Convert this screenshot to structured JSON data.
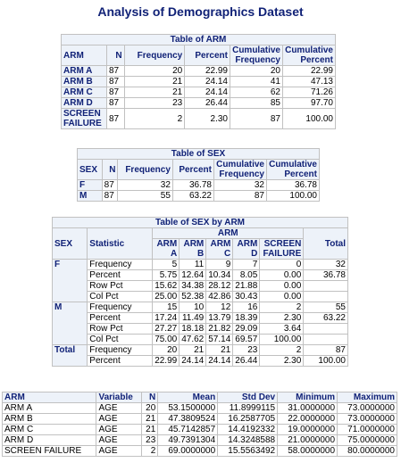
{
  "title": "Analysis of Demographics Dataset",
  "arm_table": {
    "caption": "Table of ARM",
    "headers": {
      "var": "ARM",
      "n": "N",
      "frequency": "Frequency",
      "percent": "Percent",
      "cum_freq": "Cumulative Frequency",
      "cum_pct": "Cumulative Percent"
    },
    "rows": [
      {
        "label": "ARM A",
        "n": "87",
        "freq": "20",
        "pct": "22.99",
        "cfreq": "20",
        "cpct": "22.99"
      },
      {
        "label": "ARM B",
        "n": "87",
        "freq": "21",
        "pct": "24.14",
        "cfreq": "41",
        "cpct": "47.13"
      },
      {
        "label": "ARM C",
        "n": "87",
        "freq": "21",
        "pct": "24.14",
        "cfreq": "62",
        "cpct": "71.26"
      },
      {
        "label": "ARM D",
        "n": "87",
        "freq": "23",
        "pct": "26.44",
        "cfreq": "85",
        "cpct": "97.70"
      },
      {
        "label": "SCREEN FAILURE",
        "n": "87",
        "freq": "2",
        "pct": "2.30",
        "cfreq": "87",
        "cpct": "100.00"
      }
    ]
  },
  "sex_table": {
    "caption": "Table of SEX",
    "headers": {
      "var": "SEX",
      "n": "N",
      "frequency": "Frequency",
      "percent": "Percent",
      "cum_freq": "Cumulative Frequency",
      "cum_pct": "Cumulative Percent"
    },
    "rows": [
      {
        "label": "F",
        "n": "87",
        "freq": "32",
        "pct": "36.78",
        "cfreq": "32",
        "cpct": "36.78"
      },
      {
        "label": "M",
        "n": "87",
        "freq": "55",
        "pct": "63.22",
        "cfreq": "87",
        "cpct": "100.00"
      }
    ]
  },
  "crosstab": {
    "caption": "Table of SEX by ARM",
    "group_header": "ARM",
    "headers": {
      "sex": "SEX",
      "statistic": "Statistic",
      "arm_a": "ARM A",
      "arm_b": "ARM B",
      "arm_c": "ARM C",
      "arm_d": "ARM D",
      "screen": "SCREEN FAILURE",
      "total": "Total"
    },
    "groups": [
      {
        "label": "F",
        "rows": [
          {
            "stat": "Frequency",
            "a": "5",
            "b": "11",
            "c": "9",
            "d": "7",
            "s": "0",
            "t": "32"
          },
          {
            "stat": "Percent",
            "a": "5.75",
            "b": "12.64",
            "c": "10.34",
            "d": "8.05",
            "s": "0.00",
            "t": "36.78"
          },
          {
            "stat": "Row Pct",
            "a": "15.62",
            "b": "34.38",
            "c": "28.12",
            "d": "21.88",
            "s": "0.00",
            "t": ""
          },
          {
            "stat": "Col Pct",
            "a": "25.00",
            "b": "52.38",
            "c": "42.86",
            "d": "30.43",
            "s": "0.00",
            "t": ""
          }
        ]
      },
      {
        "label": "M",
        "rows": [
          {
            "stat": "Frequency",
            "a": "15",
            "b": "10",
            "c": "12",
            "d": "16",
            "s": "2",
            "t": "55"
          },
          {
            "stat": "Percent",
            "a": "17.24",
            "b": "11.49",
            "c": "13.79",
            "d": "18.39",
            "s": "2.30",
            "t": "63.22"
          },
          {
            "stat": "Row Pct",
            "a": "27.27",
            "b": "18.18",
            "c": "21.82",
            "d": "29.09",
            "s": "3.64",
            "t": ""
          },
          {
            "stat": "Col Pct",
            "a": "75.00",
            "b": "47.62",
            "c": "57.14",
            "d": "69.57",
            "s": "100.00",
            "t": ""
          }
        ]
      },
      {
        "label": "Total",
        "rows": [
          {
            "stat": "Frequency",
            "a": "20",
            "b": "21",
            "c": "21",
            "d": "23",
            "s": "2",
            "t": "87"
          },
          {
            "stat": "Percent",
            "a": "22.99",
            "b": "24.14",
            "c": "24.14",
            "d": "26.44",
            "s": "2.30",
            "t": "100.00"
          }
        ]
      }
    ]
  },
  "means_table": {
    "headers": {
      "arm": "ARM",
      "variable": "Variable",
      "n": "N",
      "mean": "Mean",
      "std": "Std Dev",
      "min": "Minimum",
      "max": "Maximum"
    },
    "rows": [
      {
        "arm": "ARM A",
        "var": "AGE",
        "n": "20",
        "mean": "53.1500000",
        "std": "11.8999115",
        "min": "31.0000000",
        "max": "73.0000000"
      },
      {
        "arm": "ARM B",
        "var": "AGE",
        "n": "21",
        "mean": "47.3809524",
        "std": "16.2587705",
        "min": "22.0000000",
        "max": "73.0000000"
      },
      {
        "arm": "ARM C",
        "var": "AGE",
        "n": "21",
        "mean": "45.7142857",
        "std": "14.4192332",
        "min": "19.0000000",
        "max": "71.0000000"
      },
      {
        "arm": "ARM D",
        "var": "AGE",
        "n": "23",
        "mean": "49.7391304",
        "std": "14.3248588",
        "min": "21.0000000",
        "max": "75.0000000"
      },
      {
        "arm": "SCREEN FAILURE",
        "var": "AGE",
        "n": "2",
        "mean": "69.0000000",
        "std": "15.5563492",
        "min": "58.0000000",
        "max": "80.0000000"
      }
    ]
  }
}
